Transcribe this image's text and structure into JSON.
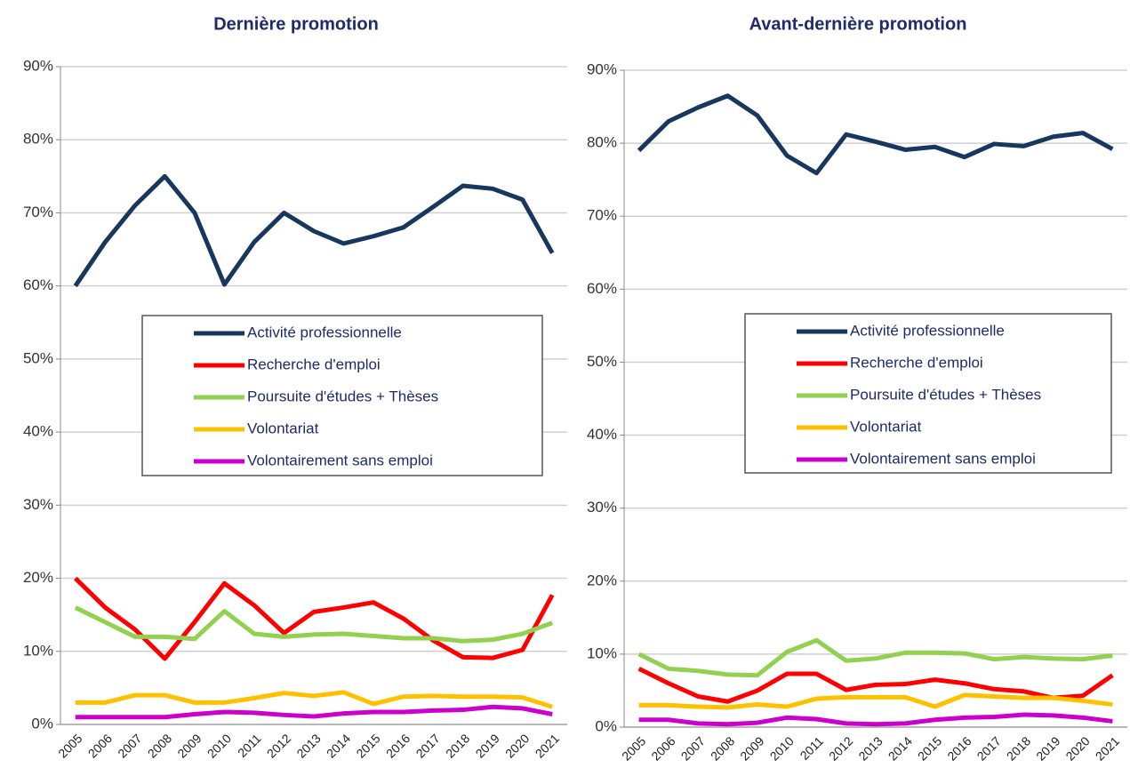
{
  "chart_data": [
    {
      "type": "line",
      "title": "Dernière promotion",
      "categories": [
        "2005",
        "2006",
        "2007",
        "2008",
        "2009",
        "2010",
        "2011",
        "2012",
        "2013",
        "2014",
        "2015",
        "2016",
        "2017",
        "2018",
        "2019",
        "2020",
        "2021"
      ],
      "ylim": [
        0,
        90
      ],
      "yticks": [
        {
          "value": 0,
          "label": "0%"
        },
        {
          "value": 10,
          "label": "10%"
        },
        {
          "value": 20,
          "label": "20%"
        },
        {
          "value": 30,
          "label": "30%"
        },
        {
          "value": 40,
          "label": "40%"
        },
        {
          "value": 50,
          "label": "50%"
        },
        {
          "value": 60,
          "label": "60%"
        },
        {
          "value": 70,
          "label": "70%"
        },
        {
          "value": 80,
          "label": "80%"
        },
        {
          "value": 90,
          "label": "90%"
        }
      ],
      "grid": true,
      "series": [
        {
          "name": "Activité professionnelle",
          "color": "#17375e",
          "values": [
            60,
            66,
            71,
            75,
            70,
            60.2,
            66,
            70,
            67.5,
            65.8,
            66.8,
            68,
            70.8,
            73.7,
            73.3,
            71.8,
            64.5
          ]
        },
        {
          "name": "Recherche d'emploi",
          "color": "#ff0000",
          "values": [
            20,
            16,
            13,
            9,
            14,
            19.3,
            16.3,
            12.5,
            15.4,
            16,
            16.7,
            14.5,
            11.5,
            9.2,
            9.1,
            10.2,
            17.7
          ]
        },
        {
          "name": "Poursuite d'études + Thèses",
          "color": "#92d050",
          "values": [
            16,
            14,
            12,
            12,
            11.7,
            15.5,
            12.4,
            12,
            12.3,
            12.4,
            12.1,
            11.8,
            11.8,
            11.4,
            11.6,
            12.4,
            13.9
          ]
        },
        {
          "name": "Volontariat",
          "color": "#ffc000",
          "values": [
            3,
            3,
            4,
            4,
            3,
            3,
            3.6,
            4.3,
            3.9,
            4.4,
            2.8,
            3.8,
            3.9,
            3.8,
            3.8,
            3.7,
            2.4
          ]
        },
        {
          "name": "Volontairement sans emploi",
          "color": "#cc00cc",
          "values": [
            1,
            1,
            1,
            1,
            1.4,
            1.7,
            1.6,
            1.3,
            1.1,
            1.5,
            1.7,
            1.7,
            1.9,
            2,
            2.4,
            2.2,
            1.4
          ]
        }
      ]
    },
    {
      "type": "line",
      "title": "Avant-dernière promotion",
      "categories": [
        "2005",
        "2006",
        "2007",
        "2008",
        "2009",
        "2010",
        "2011",
        "2012",
        "2013",
        "2014",
        "2015",
        "2016",
        "2017",
        "2018",
        "2019",
        "2020",
        "2021"
      ],
      "ylim": [
        0,
        90
      ],
      "yticks": [
        {
          "value": 0,
          "label": "0%"
        },
        {
          "value": 10,
          "label": "10%"
        },
        {
          "value": 20,
          "label": "20%"
        },
        {
          "value": 30,
          "label": "30%"
        },
        {
          "value": 40,
          "label": "40%"
        },
        {
          "value": 50,
          "label": "50%"
        },
        {
          "value": 60,
          "label": "60%"
        },
        {
          "value": 70,
          "label": "70%"
        },
        {
          "value": 80,
          "label": "80%"
        },
        {
          "value": 90,
          "label": "90%"
        }
      ],
      "grid": true,
      "series": [
        {
          "name": "Activité professionnelle",
          "color": "#17375e",
          "values": [
            79,
            83,
            84.9,
            86.5,
            83.8,
            78.3,
            75.9,
            81.2,
            80.2,
            79.1,
            79.5,
            78.1,
            79.9,
            79.6,
            80.9,
            81.4,
            79.2
          ]
        },
        {
          "name": "Recherche d'emploi",
          "color": "#ff0000",
          "values": [
            8,
            6,
            4.2,
            3.5,
            5,
            7.3,
            7.3,
            5.1,
            5.8,
            5.9,
            6.5,
            6,
            5.2,
            4.9,
            4,
            4.3,
            7.1
          ]
        },
        {
          "name": "Poursuite d'études + Thèses",
          "color": "#92d050",
          "values": [
            10,
            8,
            7.7,
            7.2,
            7.1,
            10.3,
            11.9,
            9.1,
            9.4,
            10.2,
            10.2,
            10.1,
            9.3,
            9.6,
            9.4,
            9.3,
            9.8
          ]
        },
        {
          "name": "Volontariat",
          "color": "#ffc000",
          "values": [
            3,
            3,
            2.8,
            2.7,
            3.1,
            2.8,
            3.9,
            4.1,
            4.1,
            4.1,
            2.8,
            4.4,
            4.2,
            4,
            4,
            3.6,
            3.1
          ]
        },
        {
          "name": "Volontairement sans emploi",
          "color": "#cc00cc",
          "values": [
            1,
            1,
            0.5,
            0.4,
            0.6,
            1.3,
            1.1,
            0.5,
            0.4,
            0.5,
            1,
            1.3,
            1.4,
            1.7,
            1.6,
            1.3,
            0.8
          ]
        }
      ]
    }
  ]
}
